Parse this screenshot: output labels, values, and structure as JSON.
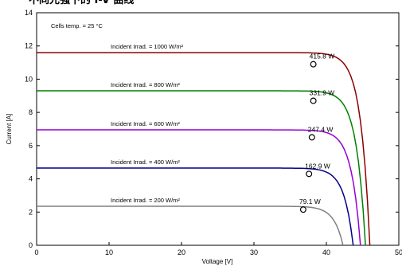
{
  "header": {
    "text": "不同光强下的 I-V 曲线"
  },
  "chart_data": {
    "type": "line",
    "title": "",
    "xlabel": "Voltage [V]",
    "ylabel": "Current [A]",
    "xlim": [
      0,
      50
    ],
    "ylim": [
      0,
      14
    ],
    "x_ticks": [
      0,
      10,
      20,
      30,
      40,
      50
    ],
    "y_ticks": [
      0,
      2,
      4,
      6,
      8,
      10,
      12,
      14
    ],
    "grid": false,
    "annotation": "Cells temp. = 25 °C",
    "series": [
      {
        "name": "Incident Irrad. = 1000 W/m²",
        "color": "#8b0000",
        "isc": 11.6,
        "voc": 46.0,
        "mpp_v": 38.2,
        "mpp_i": 10.9,
        "mpp_label": "415.8 W"
      },
      {
        "name": "Incident Irrad. = 800 W/m²",
        "color": "#008000",
        "isc": 9.3,
        "voc": 45.4,
        "mpp_v": 38.2,
        "mpp_i": 8.7,
        "mpp_label": "331.9 W"
      },
      {
        "name": "Incident Irrad. = 600 W/m²",
        "color": "#9400d3",
        "isc": 6.95,
        "voc": 44.7,
        "mpp_v": 38.0,
        "mpp_i": 6.5,
        "mpp_label": "247.4 W"
      },
      {
        "name": "Incident Irrad. = 400 W/m²",
        "color": "#00008b",
        "isc": 4.65,
        "voc": 43.7,
        "mpp_v": 37.6,
        "mpp_i": 4.3,
        "mpp_label": "162.9 W"
      },
      {
        "name": "Incident Irrad. = 200 W/m²",
        "color": "#808080",
        "isc": 2.35,
        "voc": 42.3,
        "mpp_v": 36.8,
        "mpp_i": 2.15,
        "mpp_label": "79.1 W"
      }
    ]
  }
}
